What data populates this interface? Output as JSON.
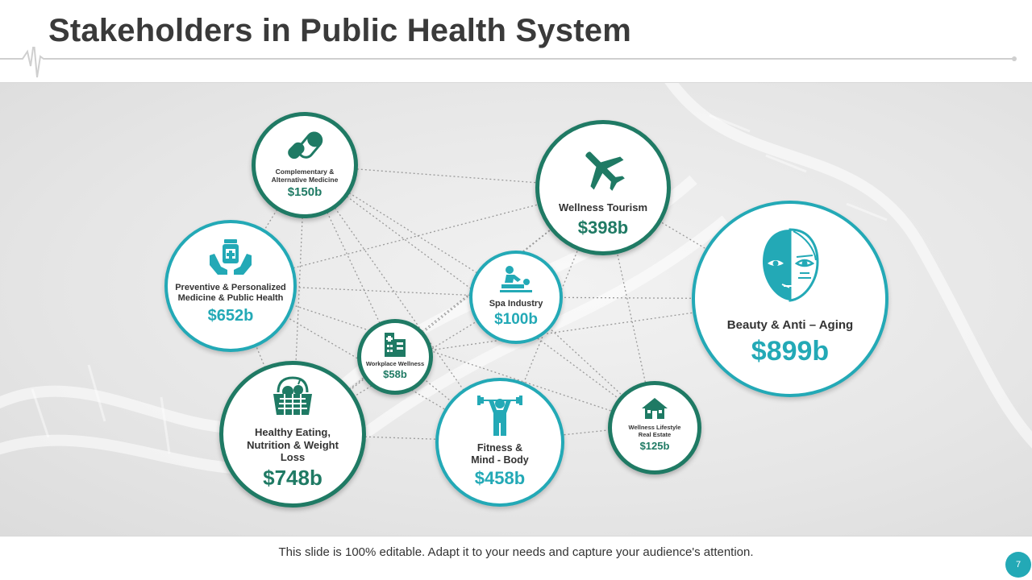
{
  "title": "Stakeholders in Public Health System",
  "footer": "This slide is 100% editable. Adapt it to your needs and capture your audience's attention.",
  "page_number": "7",
  "colors": {
    "green": "#1f7a64",
    "teal": "#23a9b6"
  },
  "nodes": {
    "cam": {
      "label": "Complementary & Alternative Medicine",
      "value": "$150b",
      "icon": "pill-capsule-icon"
    },
    "tourism": {
      "label": "Wellness Tourism",
      "value": "$398b",
      "icon": "airplane-icon"
    },
    "beauty": {
      "label": "Beauty & Anti – Aging",
      "value": "$899b",
      "icon": "face-icon"
    },
    "preventive": {
      "label": "Preventive & Personalized Medicine & Public Health",
      "value": "$652b",
      "icon": "hands-medicine-icon"
    },
    "spa": {
      "label": "Spa Industry",
      "value": "$100b",
      "icon": "massage-icon"
    },
    "workplace": {
      "label": "Workplace Wellness",
      "value": "$58b",
      "icon": "hospital-building-icon"
    },
    "healthy": {
      "label": "Healthy Eating, Nutrition & Weight Loss",
      "value": "$748b",
      "icon": "fruit-basket-icon"
    },
    "fitness": {
      "label": "Fitness & Mind - Body",
      "value": "$458b",
      "icon": "weightlifter-icon"
    },
    "realestate": {
      "label": "Wellness Lifestyle Real Estate",
      "value": "$125b",
      "icon": "house-icon"
    }
  }
}
